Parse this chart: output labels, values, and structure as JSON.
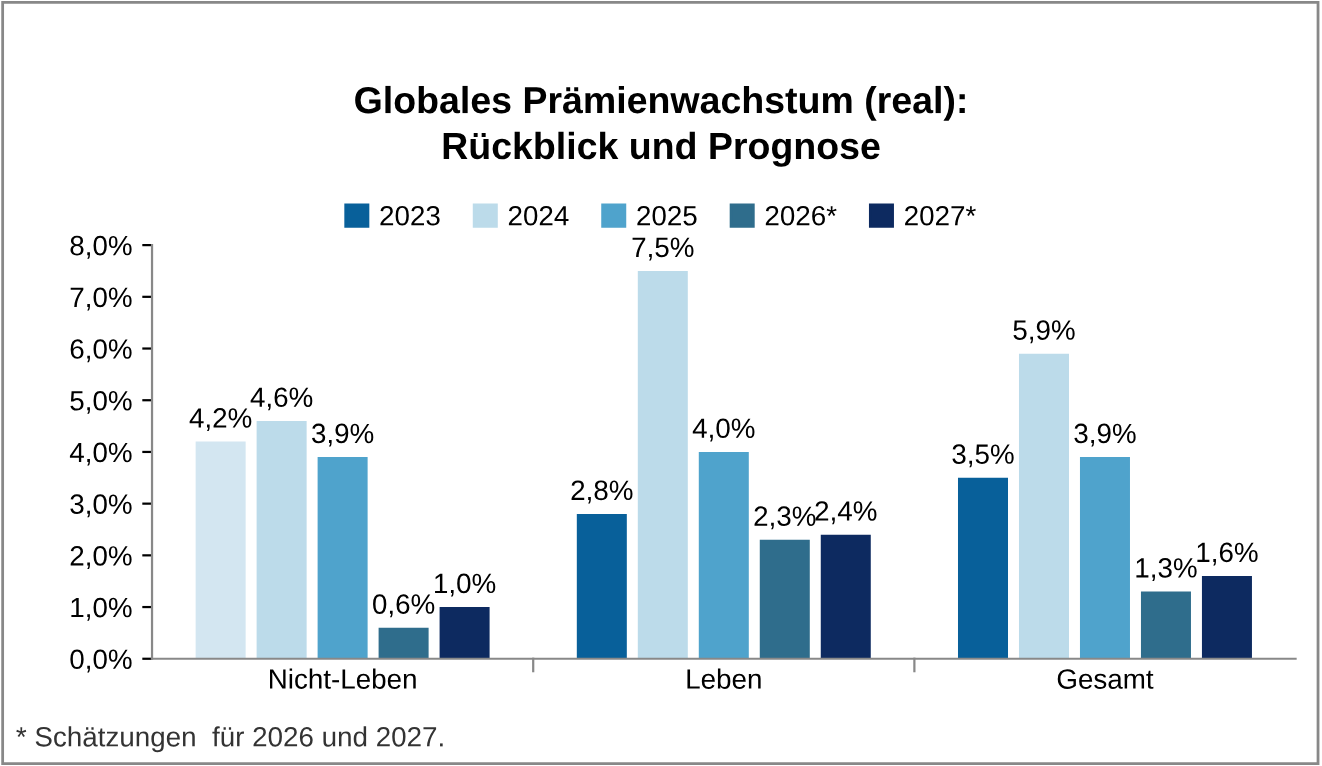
{
  "chart_data": {
    "type": "bar",
    "title": "Globales Prämienwachstum (real):\nRückblick und Prognose",
    "categories": [
      "Nicht-Leben",
      "Leben",
      "Gesamt"
    ],
    "series": [
      {
        "name": "2023",
        "color": "#08609a",
        "colors": [
          "#d3e6f1",
          "#08609a",
          "#08609a"
        ],
        "values": [
          4.2,
          2.8,
          3.5
        ],
        "value_labels": [
          "4,2%",
          "2,8%",
          "3,5%"
        ]
      },
      {
        "name": "2024",
        "color": "#bcdbea",
        "values": [
          4.6,
          7.5,
          5.9
        ],
        "value_labels": [
          "4,6%",
          "7,5%",
          "5,9%"
        ]
      },
      {
        "name": "2025",
        "color": "#4fa3cc",
        "values": [
          3.9,
          4.0,
          3.9
        ],
        "value_labels": [
          "3,9%",
          "4,0%",
          "3,9%"
        ]
      },
      {
        "name": "2026*",
        "color": "#2f6d8c",
        "values": [
          0.6,
          2.3,
          1.3
        ],
        "value_labels": [
          "0,6%",
          "2,3%",
          "1,3%"
        ]
      },
      {
        "name": "2027*",
        "color": "#0d2a60",
        "values": [
          1.0,
          2.4,
          1.6
        ],
        "value_labels": [
          "1,0%",
          "2,4%",
          "1,6%"
        ]
      }
    ],
    "ylim": [
      0,
      8
    ],
    "yticks": [
      {
        "value": 0,
        "label": "0,0%"
      },
      {
        "value": 1,
        "label": "1,0%"
      },
      {
        "value": 2,
        "label": "2,0%"
      },
      {
        "value": 3,
        "label": "3,0%"
      },
      {
        "value": 4,
        "label": "4,0%"
      },
      {
        "value": 5,
        "label": "5,0%"
      },
      {
        "value": 6,
        "label": "6,0%"
      },
      {
        "value": 7,
        "label": "7,0%"
      },
      {
        "value": 8,
        "label": "8,0%"
      }
    ],
    "grid": false,
    "legend": "top",
    "annotations": [
      "* Schätzungen  für 2026 und 2027."
    ]
  }
}
